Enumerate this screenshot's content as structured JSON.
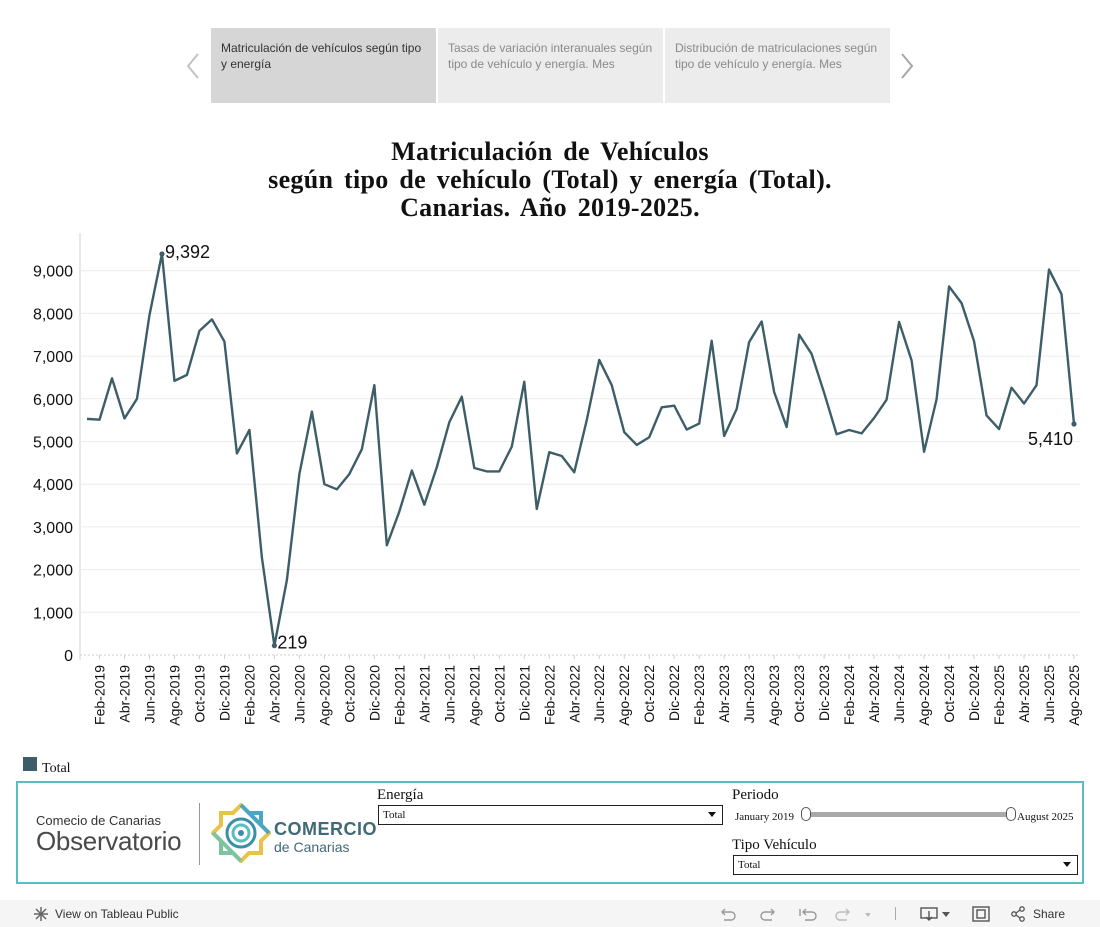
{
  "story_nav": {
    "prev_icon": "chevron-left-icon",
    "next_icon": "chevron-right-icon",
    "points": [
      {
        "label": "Matriculación de vehículos según tipo y energía",
        "active": true
      },
      {
        "label": "Tasas de variación interanuales según tipo de vehículo y energía. Mes",
        "active": false
      },
      {
        "label": "Distribución de matriculaciones según tipo de vehículo y energía. Mes",
        "active": false
      }
    ]
  },
  "title_lines": [
    "Matriculación de Vehículos",
    "según tipo de vehículo (Total) y energía (Total).",
    "Canarias. Año 2019-2025."
  ],
  "chart_data": {
    "type": "line",
    "line_color": "#3d5e68",
    "ylim": [
      0,
      10000
    ],
    "yticks": [
      0,
      1000,
      2000,
      3000,
      4000,
      5000,
      6000,
      7000,
      8000,
      9000
    ],
    "ytick_labels": [
      "0",
      "1,000",
      "2,000",
      "3,000",
      "4,000",
      "5,000",
      "6,000",
      "7,000",
      "8,000",
      "9,000"
    ],
    "x": [
      "2019-01",
      "2019-02",
      "2019-03",
      "2019-04",
      "2019-05",
      "2019-06",
      "2019-07",
      "2019-08",
      "2019-09",
      "2019-10",
      "2019-11",
      "2019-12",
      "2020-01",
      "2020-02",
      "2020-03",
      "2020-04",
      "2020-05",
      "2020-06",
      "2020-07",
      "2020-08",
      "2020-09",
      "2020-10",
      "2020-11",
      "2020-12",
      "2021-01",
      "2021-02",
      "2021-03",
      "2021-04",
      "2021-05",
      "2021-06",
      "2021-07",
      "2021-08",
      "2021-09",
      "2021-10",
      "2021-11",
      "2021-12",
      "2022-01",
      "2022-02",
      "2022-03",
      "2022-04",
      "2022-05",
      "2022-06",
      "2022-07",
      "2022-08",
      "2022-09",
      "2022-10",
      "2022-11",
      "2022-12",
      "2023-01",
      "2023-02",
      "2023-03",
      "2023-04",
      "2023-05",
      "2023-06",
      "2023-07",
      "2023-08",
      "2023-09",
      "2023-10",
      "2023-11",
      "2023-12",
      "2024-01",
      "2024-02",
      "2024-03",
      "2024-04",
      "2024-05",
      "2024-06",
      "2024-07",
      "2024-08",
      "2024-09",
      "2024-10",
      "2024-11",
      "2024-12",
      "2025-01",
      "2025-02",
      "2025-03",
      "2025-04",
      "2025-05",
      "2025-06",
      "2025-07",
      "2025-08"
    ],
    "xtick_labels": [
      "Feb-2019",
      "Abr-2019",
      "Jun-2019",
      "Ago-2019",
      "Oct-2019",
      "Dic-2019",
      "Feb-2020",
      "Abr-2020",
      "Jun-2020",
      "Ago-2020",
      "Oct-2020",
      "Dic-2020",
      "Feb-2021",
      "Abr-2021",
      "Jun-2021",
      "Ago-2021",
      "Oct-2021",
      "Dic-2021",
      "Feb-2022",
      "Abr-2022",
      "Jun-2022",
      "Ago-2022",
      "Oct-2022",
      "Dic-2022",
      "Feb-2023",
      "Abr-2023",
      "Jun-2023",
      "Ago-2023",
      "Oct-2023",
      "Dic-2023",
      "Feb-2024",
      "Abr-2024",
      "Jun-2024",
      "Ago-2024",
      "Oct-2024",
      "Dic-2024",
      "Feb-2025",
      "Abr-2025",
      "Jun-2025",
      "Ago-2025"
    ],
    "series": [
      {
        "name": "Total",
        "values": [
          5530,
          5510,
          6480,
          5540,
          6000,
          7960,
          9392,
          6420,
          6560,
          7590,
          7860,
          7340,
          4720,
          5270,
          2280,
          219,
          1760,
          4240,
          5700,
          4000,
          3880,
          4240,
          4820,
          6320,
          2570,
          3360,
          4320,
          3520,
          4400,
          5450,
          6050,
          4380,
          4300,
          4300,
          4880,
          6400,
          3420,
          4750,
          4660,
          4280,
          5500,
          6910,
          6320,
          5220,
          4920,
          5100,
          5800,
          5840,
          5280,
          5420,
          7360,
          5130,
          5760,
          7330,
          7810,
          6160,
          5340,
          7500,
          7050,
          6140,
          5170,
          5270,
          5190,
          5550,
          5980,
          7800,
          6900,
          4760,
          5990,
          8630,
          8240,
          7350,
          5610,
          5290,
          6260,
          5890,
          6320,
          9030,
          8450,
          5410
        ]
      }
    ],
    "annotations": [
      {
        "index": 6,
        "label": "9,392"
      },
      {
        "index": 15,
        "label": "219"
      },
      {
        "index": 79,
        "label": "5,410"
      }
    ],
    "grid": "horizontal",
    "legend": "bottom-left"
  },
  "legend": {
    "label": "Total",
    "color": "#3d5e68"
  },
  "branding": {
    "observatorio_top": "Comecio de Canarias",
    "observatorio_main": "Observatorio",
    "comercio_top": "COMERCIO",
    "comercio_bottom": "de Canarias"
  },
  "filters": {
    "energia": {
      "label": "Energía",
      "value": "Total"
    },
    "periodo": {
      "label": "Periodo",
      "start": "January 2019",
      "end": "August 2025",
      "range_fraction": [
        0,
        1
      ]
    },
    "tipo_vehiculo": {
      "label": "Tipo Vehículo",
      "value": "Total"
    }
  },
  "toolbar": {
    "view_on": "View on Tableau Public",
    "share": "Share"
  }
}
